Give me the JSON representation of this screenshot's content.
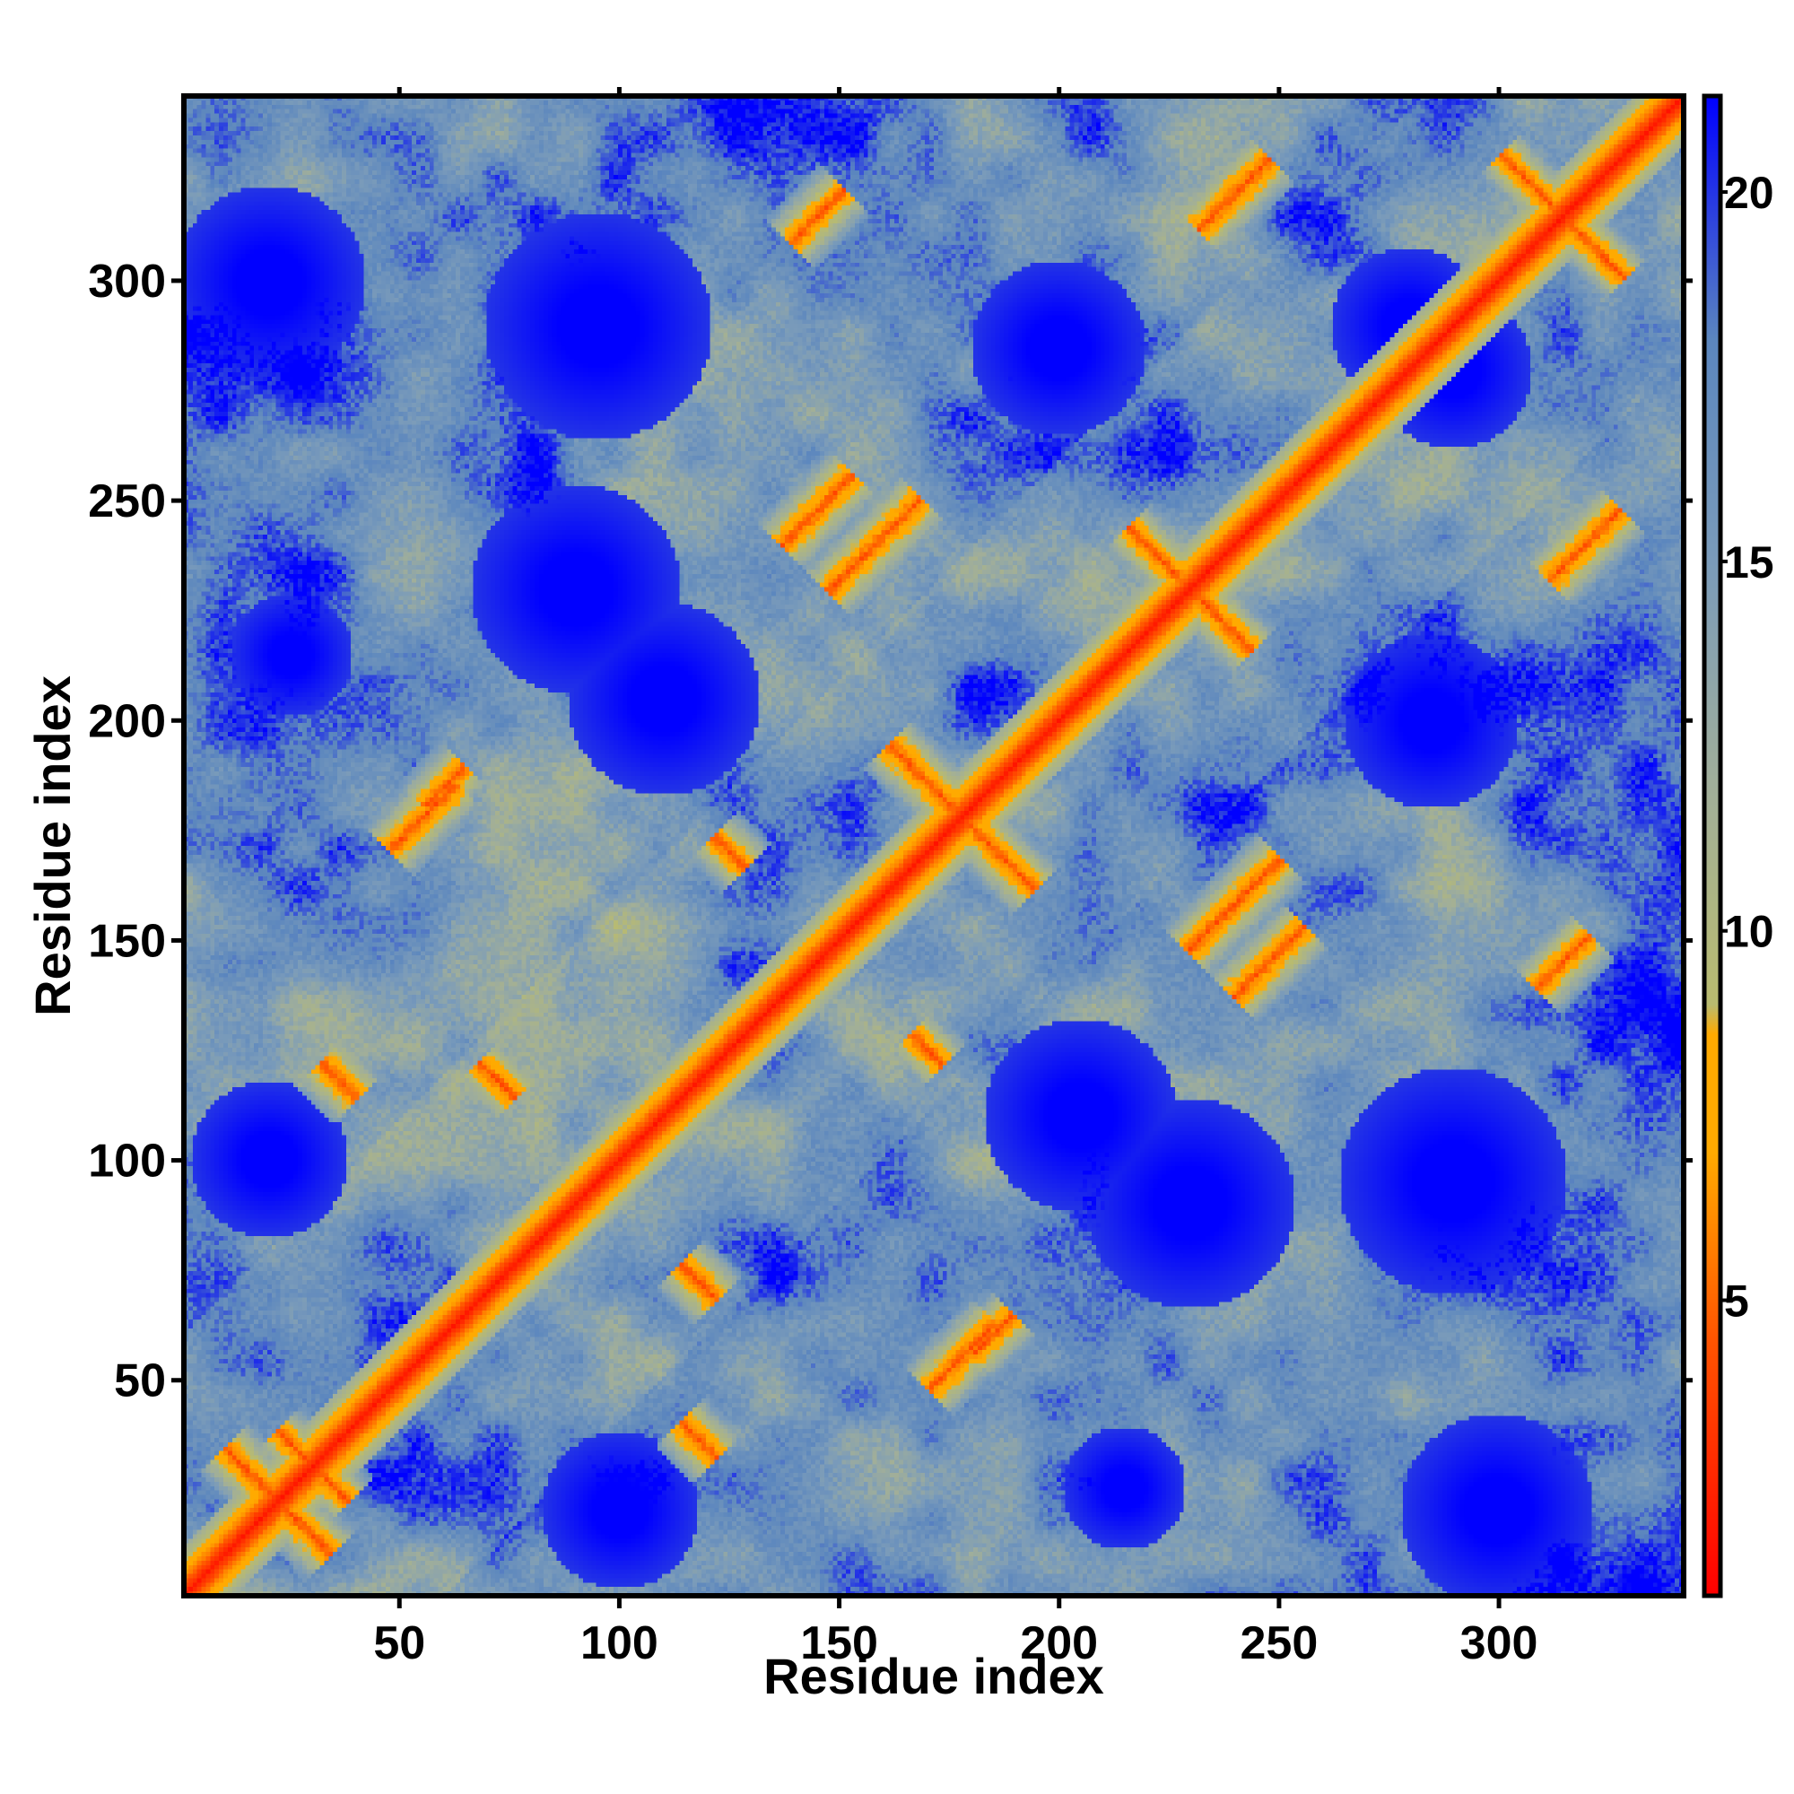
{
  "chart_data": {
    "type": "heatmap",
    "title": "",
    "xlabel": "Residue index",
    "ylabel": "Residue index",
    "xlim": [
      1,
      342
    ],
    "ylim": [
      1,
      342
    ],
    "x_ticks": [
      50,
      100,
      150,
      200,
      250,
      300
    ],
    "y_ticks": [
      50,
      100,
      150,
      200,
      250,
      300
    ],
    "colorbar": {
      "ticks": [
        5,
        10,
        15,
        20
      ],
      "range": [
        1,
        21.3
      ],
      "stops": [
        {
          "value": 1.0,
          "color": "#ff0000"
        },
        {
          "value": 4.5,
          "color": "#ff5500"
        },
        {
          "value": 7.0,
          "color": "#ffaa00"
        },
        {
          "value": 8.6,
          "color": "#ffaa00"
        },
        {
          "value": 9.0,
          "color": "#b9bb6f"
        },
        {
          "value": 12.0,
          "color": "#a0ae9a"
        },
        {
          "value": 15.0,
          "color": "#7a9bba"
        },
        {
          "value": 18.0,
          "color": "#5b86be"
        },
        {
          "value": 21.3,
          "color": "#0000ff"
        }
      ]
    },
    "colors": {
      "far": "#0000ff",
      "mid": "#5b86be",
      "near": "#b9bb6f",
      "contact": "#ffaa00",
      "close": "#ff0000"
    },
    "diagonal_value": 0,
    "contact_features": [
      {
        "kind": "antiparallel",
        "center": [
          22,
          22
        ],
        "length": 34,
        "width": 1.6
      },
      {
        "kind": "antiparallel",
        "center": [
          30,
          30
        ],
        "length": 24,
        "width": 1.4
      },
      {
        "kind": "antiparallel",
        "center": [
          118,
          36
        ],
        "length": 12,
        "width": 1.6
      },
      {
        "kind": "antiparallel",
        "center": [
          118,
          72
        ],
        "length": 12,
        "width": 1.6
      },
      {
        "kind": "antiparallel",
        "center": [
          36,
          118
        ],
        "length": 12,
        "width": 1.6
      },
      {
        "kind": "antiparallel",
        "center": [
          72,
          118
        ],
        "length": 12,
        "width": 1.6
      },
      {
        "kind": "antiparallel",
        "center": [
          178,
          178
        ],
        "length": 48,
        "width": 1.6
      },
      {
        "kind": "antiparallel",
        "center": [
          125,
          170
        ],
        "length": 10,
        "width": 1.5
      },
      {
        "kind": "antiparallel",
        "center": [
          170,
          125
        ],
        "length": 10,
        "width": 1.5
      },
      {
        "kind": "antiparallel",
        "center": [
          230,
          230
        ],
        "length": 40,
        "width": 1.5
      },
      {
        "kind": "antiparallel",
        "center": [
          315,
          315
        ],
        "length": 40,
        "width": 1.4
      },
      {
        "kind": "parallel",
        "center": [
          158,
          240
        ],
        "length": 30,
        "width": 1.6
      },
      {
        "kind": "parallel",
        "center": [
          240,
          158
        ],
        "length": 30,
        "width": 1.6
      },
      {
        "kind": "parallel",
        "center": [
          178,
          55
        ],
        "length": 22,
        "width": 1.6
      },
      {
        "kind": "parallel",
        "center": [
          55,
          178
        ],
        "length": 22,
        "width": 1.6
      },
      {
        "kind": "parallel",
        "center": [
          248,
          145
        ],
        "length": 24,
        "width": 1.6
      },
      {
        "kind": "parallel",
        "center": [
          145,
          248
        ],
        "length": 24,
        "width": 1.6
      },
      {
        "kind": "parallel",
        "center": [
          320,
          240
        ],
        "length": 24,
        "width": 1.6
      },
      {
        "kind": "parallel",
        "center": [
          240,
          320
        ],
        "length": 24,
        "width": 1.6
      },
      {
        "kind": "parallel",
        "center": [
          60,
          185
        ],
        "length": 14,
        "width": 1.5
      },
      {
        "kind": "parallel",
        "center": [
          185,
          60
        ],
        "length": 14,
        "width": 1.5
      },
      {
        "kind": "parallel",
        "center": [
          315,
          145
        ],
        "length": 18,
        "width": 1.5
      },
      {
        "kind": "parallel",
        "center": [
          145,
          315
        ],
        "length": 18,
        "width": 1.5
      }
    ],
    "far_blobs": [
      {
        "center": [
          110,
          205
        ],
        "radius": 22
      },
      {
        "center": [
          205,
          110
        ],
        "radius": 22
      },
      {
        "center": [
          230,
          90
        ],
        "radius": 24
      },
      {
        "center": [
          90,
          230
        ],
        "radius": 24
      },
      {
        "center": [
          300,
          20
        ],
        "radius": 22
      },
      {
        "center": [
          20,
          300
        ],
        "radius": 22
      },
      {
        "center": [
          290,
          280
        ],
        "radius": 18
      },
      {
        "center": [
          280,
          290
        ],
        "radius": 18
      },
      {
        "center": [
          95,
          290
        ],
        "radius": 26
      },
      {
        "center": [
          290,
          95
        ],
        "radius": 26
      },
      {
        "center": [
          100,
          20
        ],
        "radius": 18
      },
      {
        "center": [
          20,
          100
        ],
        "radius": 18
      },
      {
        "center": [
          200,
          285
        ],
        "radius": 20
      },
      {
        "center": [
          285,
          200
        ],
        "radius": 20
      },
      {
        "center": [
          25,
          215
        ],
        "radius": 14
      },
      {
        "center": [
          215,
          25
        ],
        "radius": 14
      }
    ]
  }
}
